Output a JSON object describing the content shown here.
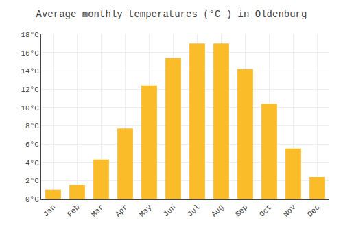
{
  "chart_data": {
    "type": "bar",
    "title": "Average monthly temperatures (°C ) in Oldenburg",
    "categories": [
      "Jan",
      "Feb",
      "Mar",
      "Apr",
      "May",
      "Jun",
      "Jul",
      "Aug",
      "Sep",
      "Oct",
      "Nov",
      "Dec"
    ],
    "values": [
      1.0,
      1.5,
      4.3,
      7.7,
      12.4,
      15.4,
      17.0,
      17.0,
      14.2,
      10.4,
      5.5,
      2.4
    ],
    "color": "#FBBC2A",
    "ylim": [
      0,
      18
    ],
    "yticks": [
      {
        "value": 0,
        "label": "0°C"
      },
      {
        "value": 2,
        "label": "2°C"
      },
      {
        "value": 4,
        "label": "4°C"
      },
      {
        "value": 6,
        "label": "6°C"
      },
      {
        "value": 8,
        "label": "8°C"
      },
      {
        "value": 10,
        "label": "10°C"
      },
      {
        "value": 12,
        "label": "12°C"
      },
      {
        "value": 14,
        "label": "14°C"
      },
      {
        "value": 16,
        "label": "16°C"
      },
      {
        "value": 18,
        "label": "18°C"
      }
    ],
    "grid": true
  }
}
